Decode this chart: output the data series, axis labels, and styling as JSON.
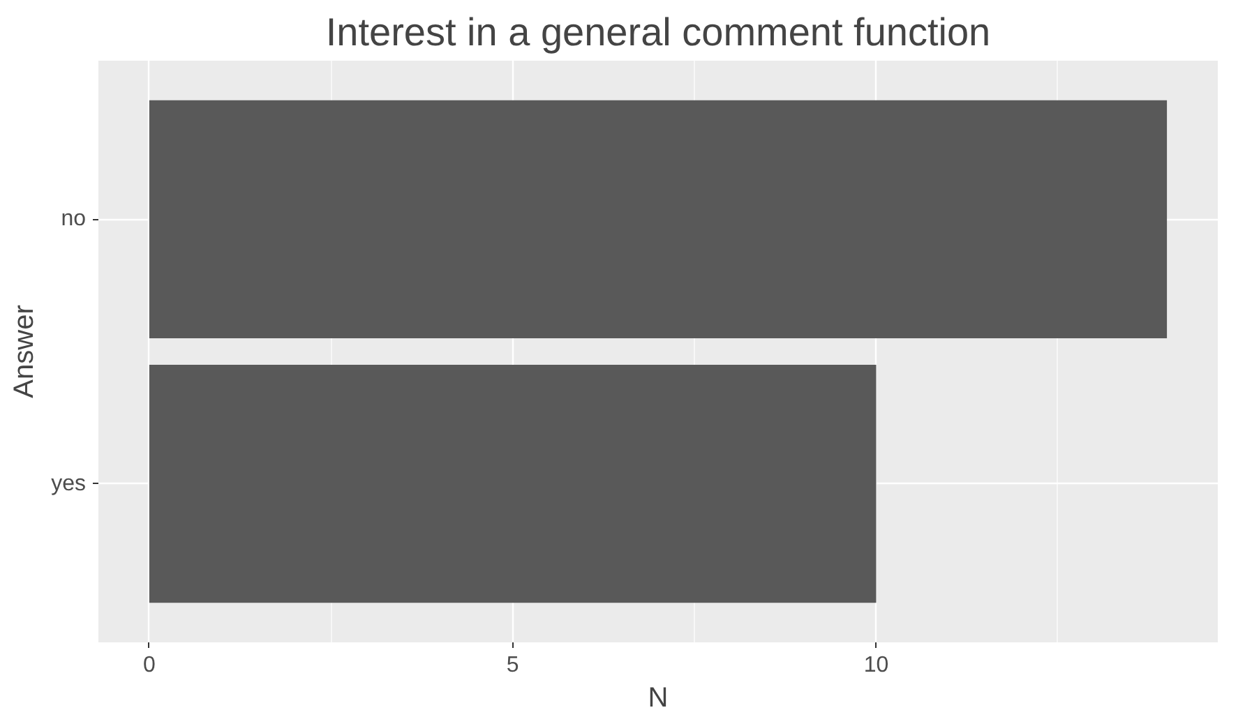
{
  "chart_data": {
    "type": "bar",
    "orientation": "horizontal",
    "title": "Interest in a general comment function",
    "xlabel": "N",
    "ylabel": "Answer",
    "categories": [
      "no",
      "yes"
    ],
    "values": [
      14,
      10
    ],
    "color": "#595959",
    "xlim": [
      -0.7,
      14.7
    ],
    "xticks": [
      0,
      5,
      10
    ],
    "grid": true
  }
}
